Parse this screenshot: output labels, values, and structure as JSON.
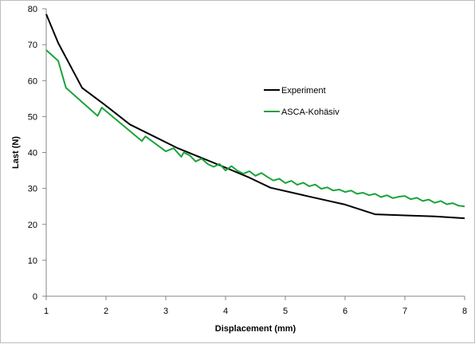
{
  "chart_data": {
    "type": "line",
    "title": "",
    "xlabel": "Displacement (mm)",
    "ylabel": "Last (N)",
    "xlim": [
      1,
      8
    ],
    "ylim": [
      0,
      80
    ],
    "xticks": [
      1,
      2,
      3,
      4,
      5,
      6,
      7,
      8
    ],
    "yticks": [
      0,
      10,
      20,
      30,
      40,
      50,
      60,
      70,
      80
    ],
    "grid": false,
    "legend_position": "right",
    "series": [
      {
        "name": "Experiment",
        "color": "#000000",
        "x": [
          1.0,
          1.2,
          1.6,
          2.0,
          2.4,
          2.8,
          3.2,
          3.6,
          4.0,
          4.4,
          4.75,
          5.2,
          5.6,
          6.0,
          6.5,
          7.0,
          7.5,
          8.0
        ],
        "y": [
          78.5,
          70.5,
          58.0,
          53.0,
          47.8,
          44.5,
          41.2,
          38.5,
          35.8,
          33.0,
          30.2,
          28.5,
          27.0,
          25.5,
          22.8,
          22.5,
          22.2,
          21.7
        ]
      },
      {
        "name": "ASCA-Kohäsiv",
        "color": "#1aa33a",
        "x": [
          1.0,
          1.2,
          1.33,
          1.86,
          1.93,
          2.6,
          2.66,
          3.0,
          3.13,
          3.26,
          3.3,
          3.4,
          3.5,
          3.6,
          3.7,
          3.8,
          3.9,
          4.0,
          4.1,
          4.2,
          4.3,
          4.4,
          4.5,
          4.6,
          4.7,
          4.8,
          4.9,
          5.0,
          5.1,
          5.2,
          5.3,
          5.4,
          5.5,
          5.6,
          5.7,
          5.8,
          5.9,
          6.0,
          6.1,
          6.2,
          6.3,
          6.4,
          6.5,
          6.6,
          6.7,
          6.8,
          6.9,
          7.0,
          7.1,
          7.2,
          7.3,
          7.4,
          7.5,
          7.6,
          7.7,
          7.8,
          7.9,
          8.0
        ],
        "y": [
          68.5,
          65.5,
          58.0,
          50.2,
          52.5,
          43.2,
          44.5,
          40.3,
          41.2,
          38.8,
          40.0,
          39.2,
          37.5,
          38.3,
          36.8,
          36.0,
          36.8,
          35.0,
          36.2,
          34.9,
          34.1,
          34.8,
          33.5,
          34.3,
          33.2,
          32.2,
          32.7,
          31.5,
          32.1,
          31.0,
          31.6,
          30.6,
          31.1,
          29.9,
          30.3,
          29.4,
          29.7,
          29.0,
          29.4,
          28.5,
          28.8,
          28.1,
          28.5,
          27.6,
          28.1,
          27.3,
          27.7,
          27.9,
          27.0,
          27.4,
          26.5,
          26.9,
          26.0,
          26.5,
          25.6,
          25.9,
          25.2,
          25.0
        ]
      }
    ]
  }
}
